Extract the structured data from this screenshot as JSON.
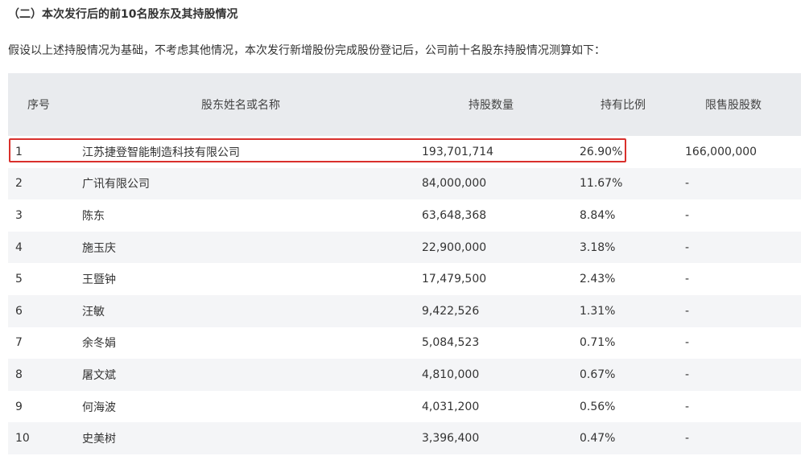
{
  "section_title": "（二）本次发行后的前10名股东及其持股情况",
  "intro": "假设以上述持股情况为基础，不考虑其他情况，本次发行新增股份完成股份登记后，公司前十名股东持股情况测算如下：",
  "highlight_color": "#d9302c",
  "table": {
    "headers": [
      "序号",
      "股东姓名或名称",
      "持股数量",
      "持有比例",
      "限售股股数"
    ],
    "rows": [
      [
        "1",
        "江苏捷登智能制造科技有限公司",
        "193,701,714",
        "26.90%",
        "166,000,000"
      ],
      [
        "2",
        "广讯有限公司",
        "84,000,000",
        "11.67%",
        "-"
      ],
      [
        "3",
        "陈东",
        "63,648,368",
        "8.84%",
        "-"
      ],
      [
        "4",
        "施玉庆",
        "22,900,000",
        "3.18%",
        "-"
      ],
      [
        "5",
        "王暨钟",
        "17,479,500",
        "2.43%",
        "-"
      ],
      [
        "6",
        "汪敏",
        "9,422,526",
        "1.31%",
        "-"
      ],
      [
        "7",
        "余冬娟",
        "5,084,523",
        "0.71%",
        "-"
      ],
      [
        "8",
        "屠文斌",
        "4,810,000",
        "0.67%",
        "-"
      ],
      [
        "9",
        "何海波",
        "4,031,200",
        "0.56%",
        "-"
      ],
      [
        "10",
        "史美树",
        "3,396,400",
        "0.47%",
        "-"
      ]
    ]
  }
}
